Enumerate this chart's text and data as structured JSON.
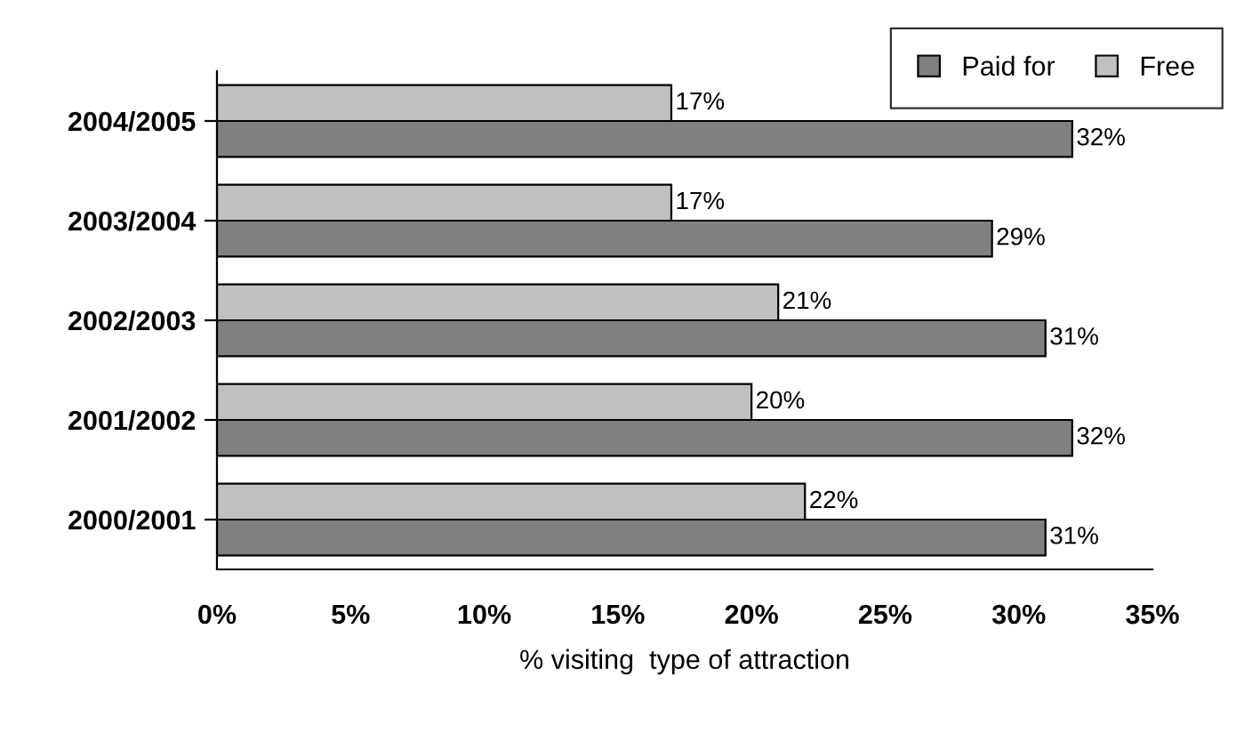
{
  "chart_data": {
    "type": "bar",
    "orientation": "horizontal",
    "xlabel": "% visiting  type of attraction",
    "categories": [
      "2004/2005",
      "2003/2004",
      "2002/2003",
      "2001/2002",
      "2000/2001"
    ],
    "series": [
      {
        "name": "Paid for",
        "color": "#808080",
        "values": [
          32,
          29,
          31,
          32,
          31
        ],
        "value_labels": [
          "32%",
          "29%",
          "31%",
          "32%",
          "31%"
        ]
      },
      {
        "name": "Free",
        "color": "#c0c0c0",
        "values": [
          17,
          17,
          21,
          20,
          22
        ],
        "value_labels": [
          "17%",
          "17%",
          "21%",
          "20%",
          "22%"
        ]
      }
    ],
    "xlim": [
      0,
      35
    ],
    "xticks": [
      {
        "value": 0,
        "label": "0%"
      },
      {
        "value": 5,
        "label": "5%"
      },
      {
        "value": 10,
        "label": "10%"
      },
      {
        "value": 15,
        "label": "15%"
      },
      {
        "value": 20,
        "label": "20%"
      },
      {
        "value": 25,
        "label": "25%"
      },
      {
        "value": 30,
        "label": "30%"
      },
      {
        "value": 35,
        "label": "35%"
      }
    ],
    "legend": "top right",
    "grid": false
  }
}
